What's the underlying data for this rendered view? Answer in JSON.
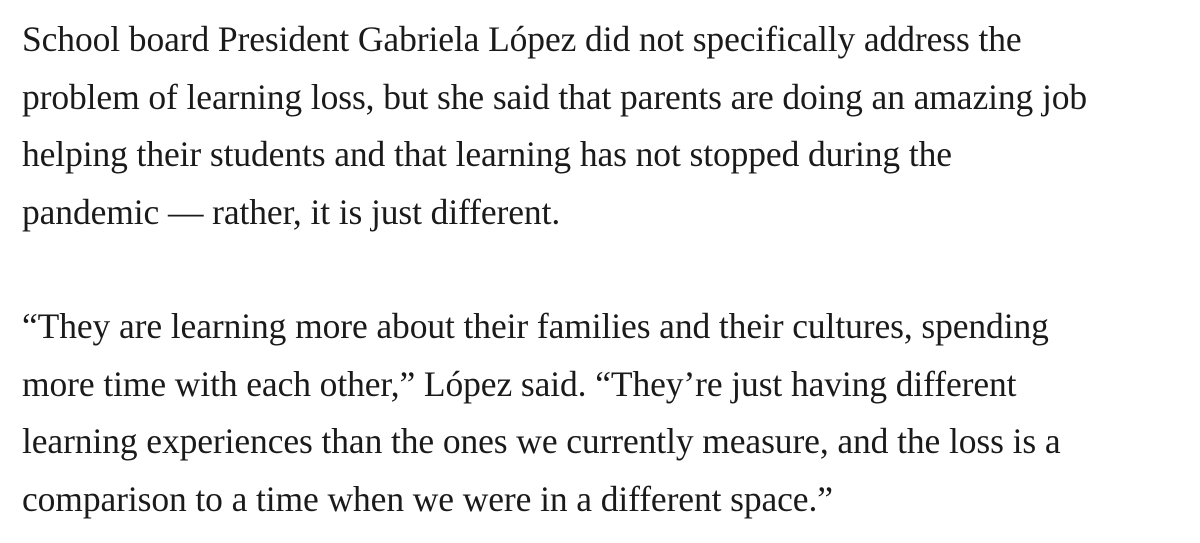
{
  "article": {
    "paragraphs": [
      {
        "lines": [
          "School board President Gabriela López did not specifically address the",
          "problem of learning loss, but she said that parents are doing an amazing job",
          "helping their students and that learning has not stopped during the",
          "pandemic — rather, it is just different."
        ]
      },
      {
        "lines": [
          "“They are learning more about their families and their cultures, spending",
          "more time with each other,” López said. “They’re just having different",
          "learning experiences than the ones we currently measure, and the loss is a",
          "comparison to a time when we were in a different space.”"
        ]
      }
    ]
  }
}
